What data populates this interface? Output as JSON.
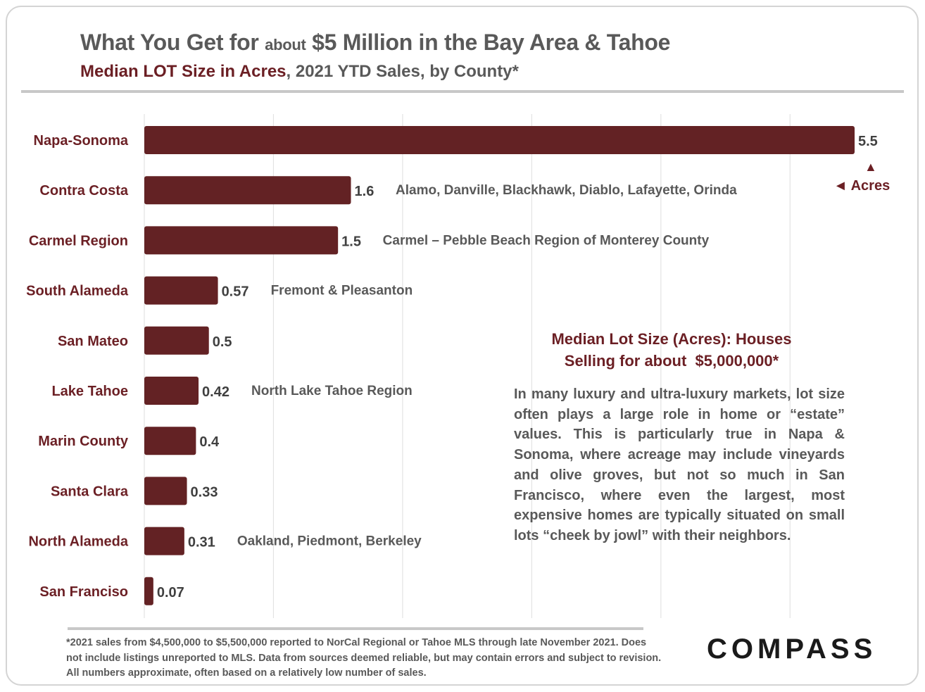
{
  "header": {
    "title_part1": "What You Get for",
    "title_small": "about",
    "title_part2": "$5 Million in the Bay Area & Tahoe",
    "subtitle_accent": "Median LOT Size in Acres",
    "subtitle_rest": ", 2021 YTD Sales, by County*"
  },
  "chart_data": {
    "type": "bar",
    "orientation": "horizontal",
    "categories": [
      "Napa-Sonoma",
      "Contra Costa",
      "Carmel Region",
      "South Alameda",
      "San Mateo",
      "Lake Tahoe",
      "Marin County",
      "Santa Clara",
      "North Alameda",
      "San Franciso"
    ],
    "values": [
      5.5,
      1.6,
      1.5,
      0.57,
      0.5,
      0.42,
      0.4,
      0.33,
      0.31,
      0.07
    ],
    "value_labels": [
      "5.5",
      "1.6",
      "1.5",
      "0.57",
      "0.5",
      "0.42",
      "0.4",
      "0.33",
      "0.31",
      "0.07"
    ],
    "annotations": [
      "",
      "Alamo, Danville, Blackhawk, Diablo, Lafayette, Orinda",
      "Carmel – Pebble Beach Region of Monterey County",
      "Fremont & Pleasanton",
      "",
      "North Lake Tahoe Region",
      "",
      "",
      "Oakland, Piedmont, Berkeley",
      ""
    ],
    "xlim": [
      0,
      5.5
    ],
    "grid": true,
    "bar_color": "#632224",
    "unit_label": "◄ Acres"
  },
  "info_box": {
    "title_line1": "Median Lot Size (Acres): Houses",
    "title_line2": "Selling for about  $5,000,000*",
    "body": "In many luxury and ultra-luxury markets, lot size often plays a large role in home or “estate” values. This is particularly true in Napa & Sonoma, where acreage may include vineyards and olive groves, but not so much in San Francisco, where even the largest, most expensive homes are typically situated on small lots “cheek by jowl” with their neighbors."
  },
  "footnote": "*2021 sales from $4,500,000 to $5,500,000 reported to NorCal Regional or Tahoe MLS through late November 2021. Does not include listings unreported to MLS. Data from sources deemed reliable, but may contain errors and subject to revision. All numbers approximate, often based on a relatively low number of sales.",
  "logo": "COMPASS",
  "colors": {
    "accent": "#6b1f24",
    "bar": "#632224",
    "text": "#595959"
  }
}
